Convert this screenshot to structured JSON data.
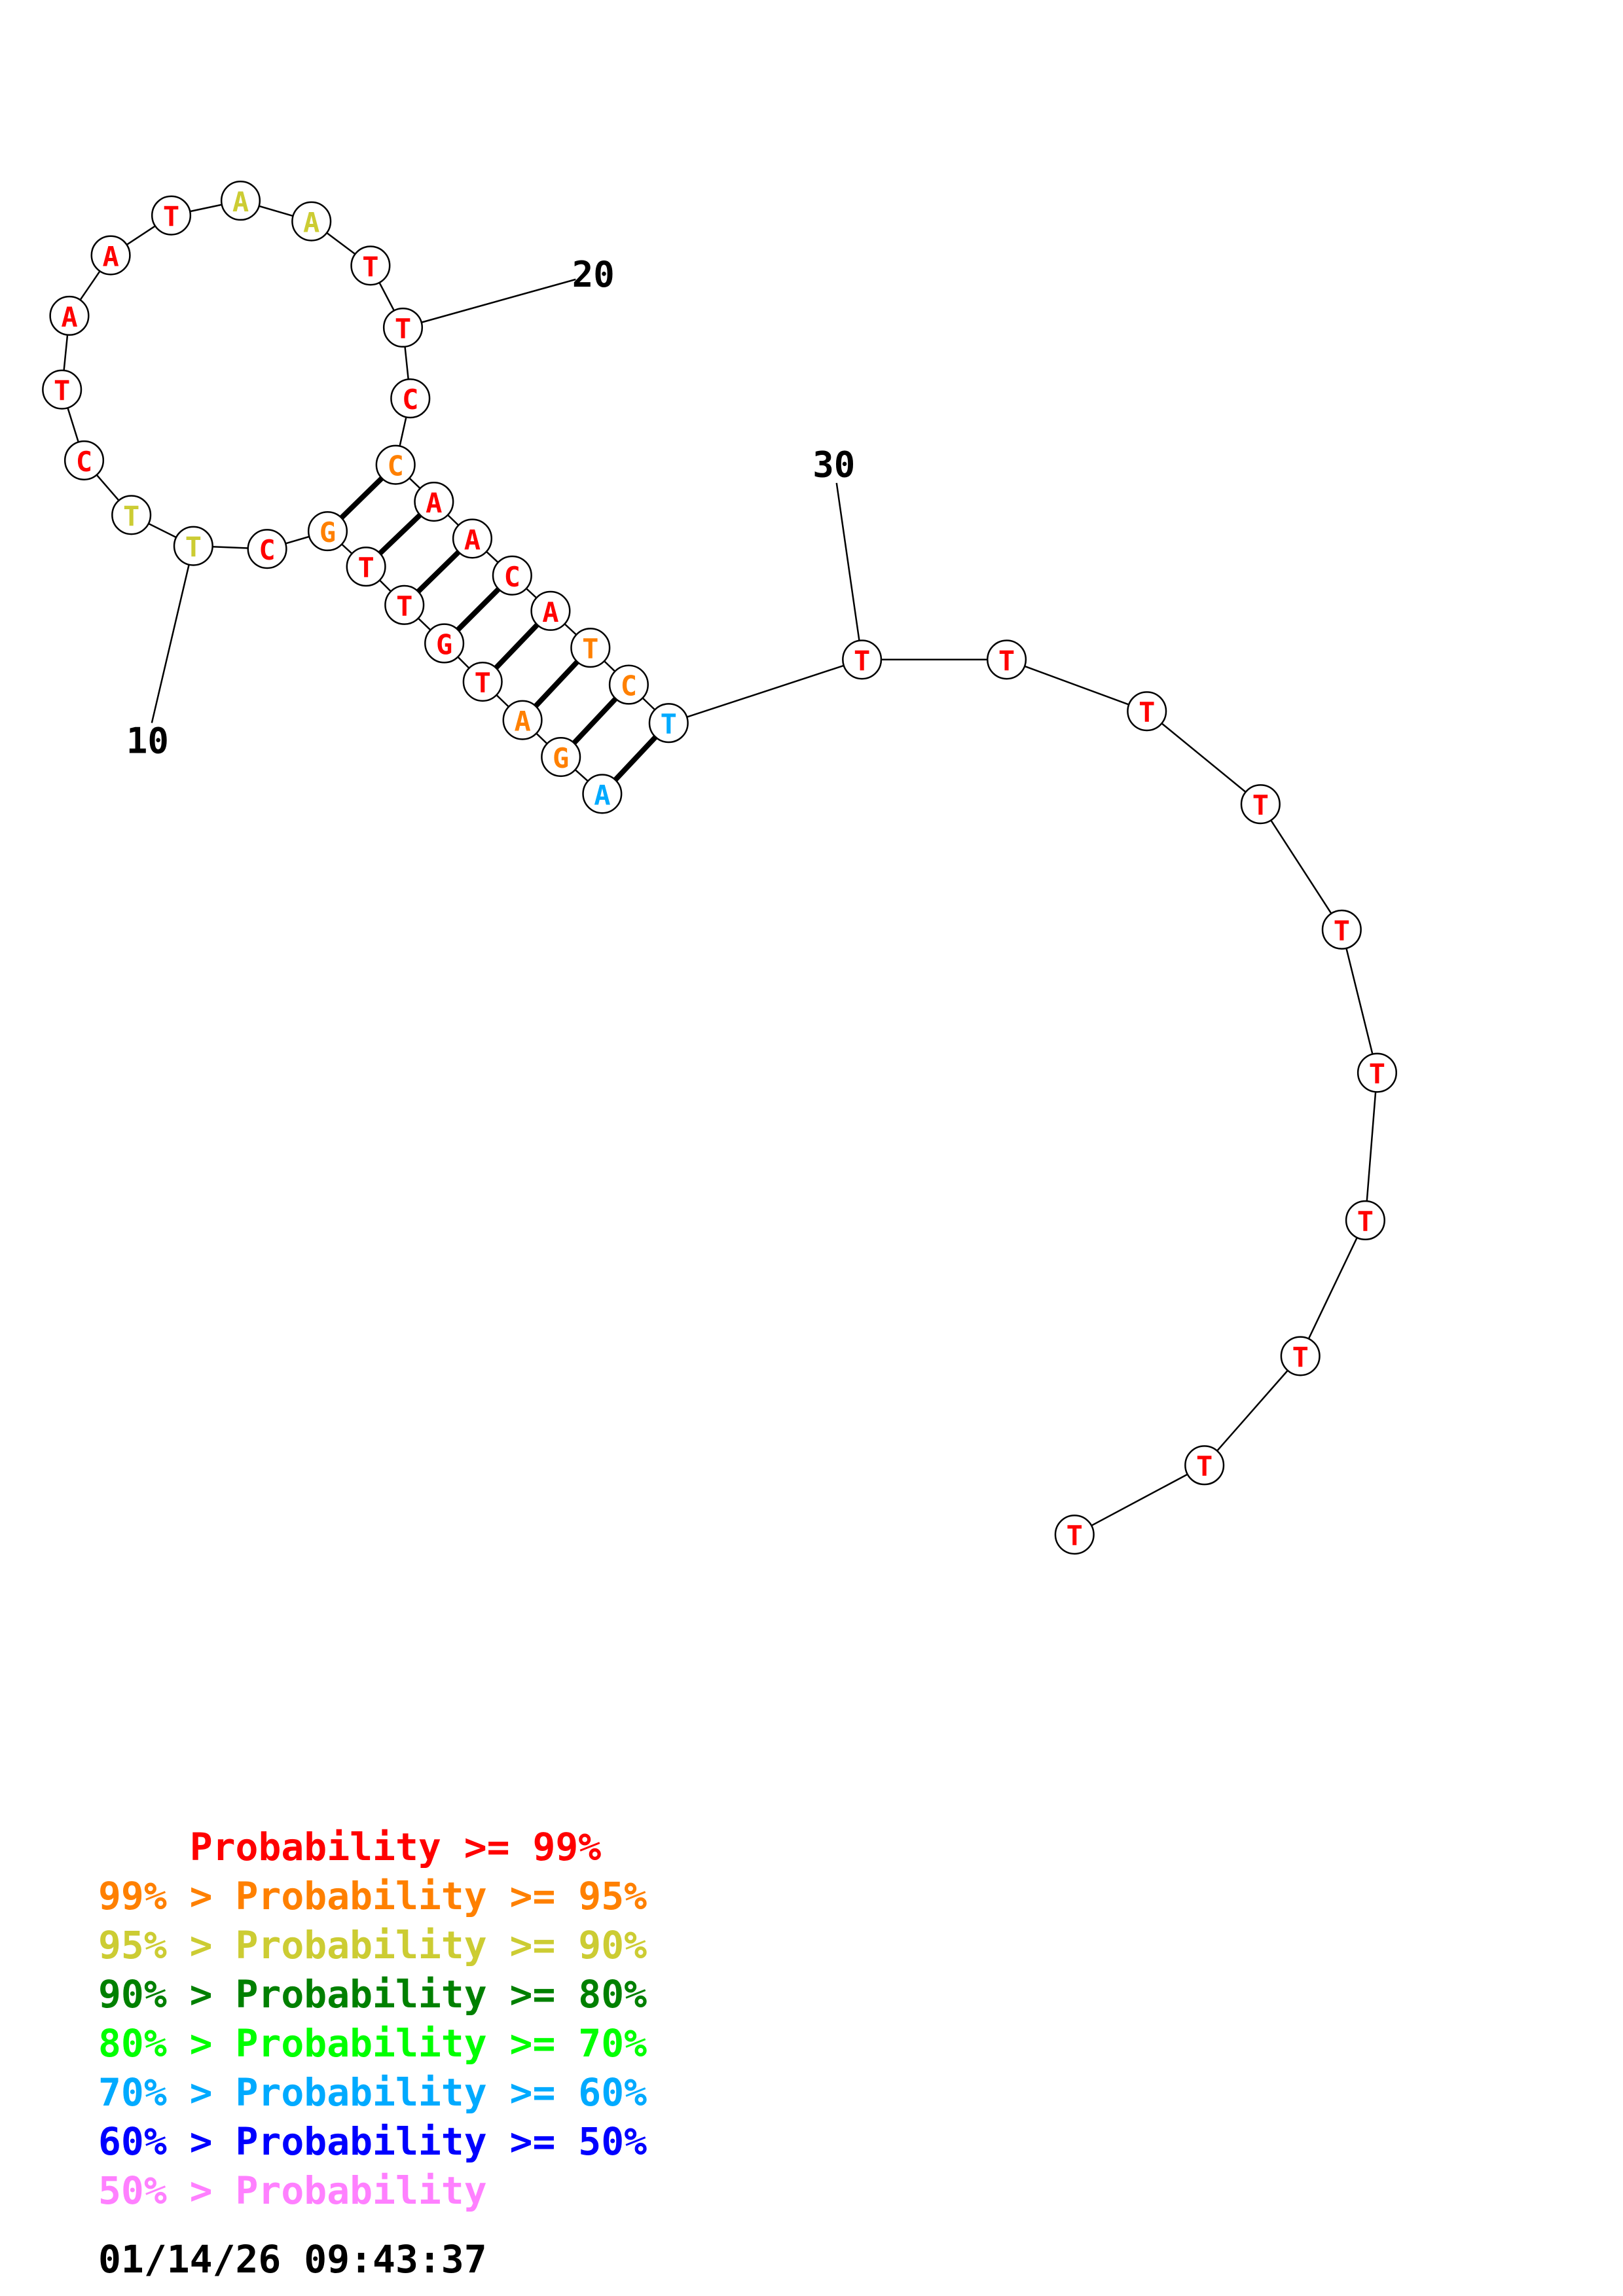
{
  "sequence": [
    {
      "base": "A",
      "color": "#00aaff"
    },
    {
      "base": "G",
      "color": "#ff8000"
    },
    {
      "base": "A",
      "color": "#ff8000"
    },
    {
      "base": "T",
      "color": "#ff0000"
    },
    {
      "base": "G",
      "color": "#ff0000"
    },
    {
      "base": "T",
      "color": "#ff0000"
    },
    {
      "base": "T",
      "color": "#ff0000"
    },
    {
      "base": "G",
      "color": "#ff8000"
    },
    {
      "base": "C",
      "color": "#ff0000"
    },
    {
      "base": "T",
      "color": "#cccc33"
    },
    {
      "base": "T",
      "color": "#cccc33"
    },
    {
      "base": "C",
      "color": "#ff0000"
    },
    {
      "base": "T",
      "color": "#ff0000"
    },
    {
      "base": "A",
      "color": "#ff0000"
    },
    {
      "base": "A",
      "color": "#ff0000"
    },
    {
      "base": "T",
      "color": "#ff0000"
    },
    {
      "base": "A",
      "color": "#cccc33"
    },
    {
      "base": "A",
      "color": "#cccc33"
    },
    {
      "base": "T",
      "color": "#ff0000"
    },
    {
      "base": "T",
      "color": "#ff0000"
    },
    {
      "base": "C",
      "color": "#ff0000"
    },
    {
      "base": "C",
      "color": "#ff8000"
    },
    {
      "base": "A",
      "color": "#ff0000"
    },
    {
      "base": "A",
      "color": "#ff0000"
    },
    {
      "base": "C",
      "color": "#ff0000"
    },
    {
      "base": "A",
      "color": "#ff0000"
    },
    {
      "base": "T",
      "color": "#ff8000"
    },
    {
      "base": "C",
      "color": "#ff8000"
    },
    {
      "base": "T",
      "color": "#00aaff"
    },
    {
      "base": "T",
      "color": "#ff0000"
    },
    {
      "base": "T",
      "color": "#ff0000"
    },
    {
      "base": "T",
      "color": "#ff0000"
    },
    {
      "base": "T",
      "color": "#ff0000"
    },
    {
      "base": "T",
      "color": "#ff0000"
    },
    {
      "base": "T",
      "color": "#ff0000"
    },
    {
      "base": "T",
      "color": "#ff0000"
    },
    {
      "base": "T",
      "color": "#ff0000"
    },
    {
      "base": "T",
      "color": "#ff0000"
    },
    {
      "base": "T",
      "color": "#ff0000"
    }
  ],
  "base_pairs": [
    [
      1,
      29
    ],
    [
      2,
      28
    ],
    [
      3,
      27
    ],
    [
      4,
      26
    ],
    [
      5,
      25
    ],
    [
      6,
      24
    ],
    [
      7,
      23
    ],
    [
      8,
      22
    ]
  ],
  "position_labels": [
    {
      "text": "10",
      "index": 10
    },
    {
      "text": "20",
      "index": 20
    },
    {
      "text": "30",
      "index": 30
    }
  ],
  "legend": [
    {
      "prefix": "    ",
      "range": "Probability >= 99%",
      "color": "#ff0000"
    },
    {
      "prefix": "99% > ",
      "range": "Probability >= 95%",
      "color": "#ff8000"
    },
    {
      "prefix": "95% > ",
      "range": "Probability >= 90%",
      "color": "#cccc33"
    },
    {
      "prefix": "90% > ",
      "range": "Probability >= 80%",
      "color": "#008000"
    },
    {
      "prefix": "80% > ",
      "range": "Probability >= 70%",
      "color": "#00ff00"
    },
    {
      "prefix": "70% > ",
      "range": "Probability >= 60%",
      "color": "#00aaff"
    },
    {
      "prefix": "60% > ",
      "range": "Probability >= 50%",
      "color": "#0000ff"
    },
    {
      "prefix": "50% > ",
      "range": "Probability",
      "color": "#ff80ff"
    }
  ],
  "timestamp": "01/14/26 09:43:37"
}
